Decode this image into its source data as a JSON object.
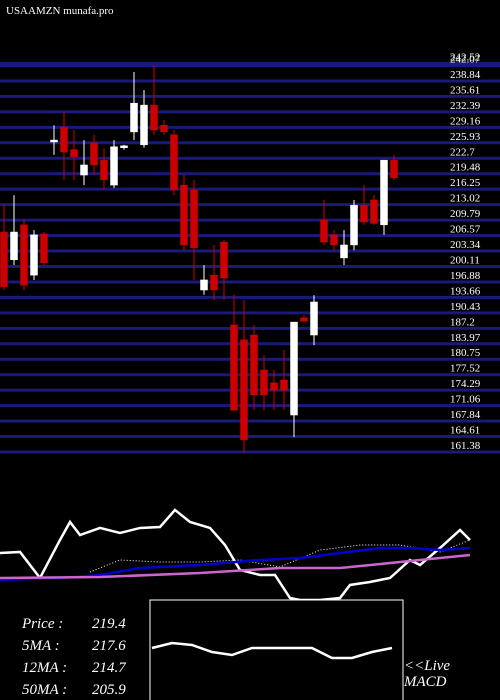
{
  "chart_data": [
    {
      "type": "candlestick",
      "title": "USAAMZN munafa.pro",
      "ylim": [
        159.71,
        247.39
      ],
      "yticks": [
        242.52,
        242.07,
        238.84,
        235.61,
        232.39,
        229.16,
        225.93,
        222.7,
        219.48,
        216.25,
        213.02,
        209.79,
        206.57,
        203.34,
        200.11,
        196.88,
        193.66,
        190.43,
        187.2,
        183.97,
        180.75,
        177.52,
        174.29,
        171.06,
        167.84,
        164.61,
        161.38
      ],
      "grid": true,
      "grid_color": "#1a1a7a",
      "up_color": "#ffffff",
      "down_color": "#cc0000",
      "open": [
        207.3,
        201.5,
        208.8,
        198.3,
        206.9,
        226.1,
        229.2,
        224.5,
        219.2,
        225.9,
        222.3,
        217.1,
        224.9,
        228.2,
        225.5,
        233.8,
        229.6,
        227.6,
        217.1,
        216.1,
        195.2,
        198.3,
        205.2,
        187.9,
        184.8,
        185.8,
        178.5,
        175.8,
        176.4,
        169.1,
        189.4,
        185.8,
        209.8,
        206.7,
        201.9,
        204.6,
        212.9,
        214.0,
        208.8,
        222.3
      ],
      "high": [
        213.0,
        215.0,
        209.8,
        207.7,
        207.3,
        229.6,
        232.4,
        228.6,
        226.5,
        227.6,
        224.8,
        226.5,
        225.5,
        240.7,
        236.96,
        242.2,
        230.7,
        228.6,
        219.2,
        218.2,
        200.4,
        204.6,
        205.6,
        194.2,
        193.1,
        187.9,
        181.6,
        178.5,
        182.7,
        188.5,
        190.0,
        194.1,
        214.0,
        207.7,
        207.7,
        214.0,
        217.1,
        215.0,
        222.3,
        223.4
      ],
      "low": [
        195.2,
        200.4,
        195.2,
        197.3,
        200.4,
        223.4,
        218.2,
        218.2,
        217.1,
        219.2,
        216.1,
        216.5,
        224.5,
        226.5,
        224.9,
        227.6,
        227.6,
        215.0,
        203.5,
        197.3,
        194.2,
        193.1,
        193.1,
        170.1,
        161.2,
        170.1,
        170.1,
        170.1,
        170.1,
        164.5,
        188.5,
        183.7,
        204.6,
        203.5,
        200.4,
        203.5,
        208.8,
        208.8,
        206.7,
        218.2
      ],
      "close": [
        195.9,
        207.3,
        196.2,
        206.7,
        200.9,
        226.5,
        224.0,
        223.0,
        221.3,
        221.3,
        218.2,
        225.1,
        225.3,
        234.2,
        233.8,
        228.6,
        228.2,
        216.1,
        204.6,
        204.0,
        197.3,
        195.2,
        197.7,
        170.1,
        163.9,
        173.3,
        173.3,
        174.3,
        174.3,
        188.5,
        188.7,
        192.7,
        205.2,
        204.6,
        204.6,
        212.9,
        209.4,
        209.1,
        222.3,
        218.6
      ]
    },
    {
      "type": "line",
      "xlim": [
        0,
        50
      ],
      "ylim": [
        0,
        100
      ],
      "series": [
        {
          "color": "#ffffff",
          "style": "solid",
          "x": [
            0,
            2,
            4,
            6,
            7,
            8,
            10,
            12,
            14,
            16,
            17.5,
            19,
            21,
            22.5,
            24,
            26,
            27.5,
            29,
            30,
            32,
            34,
            35,
            37,
            39,
            41,
            42,
            44,
            46,
            47
          ],
          "values": [
            55.8,
            56.7,
            35,
            66.7,
            81.7,
            70.8,
            76.7,
            72.5,
            76.7,
            77.5,
            91.7,
            81.7,
            76.7,
            62.5,
            41.7,
            37.5,
            37.5,
            18.3,
            16.7,
            16.7,
            18.3,
            29.2,
            31.7,
            35,
            50,
            45.8,
            60,
            75,
            66.7
          ]
        },
        {
          "color": "#ffffff",
          "style": "dotted",
          "x": [
            9,
            12,
            16,
            20,
            24,
            28,
            32,
            36,
            40,
            44,
            47
          ],
          "values": [
            40,
            50,
            48.3,
            48.3,
            50,
            44.2,
            58.3,
            62.5,
            62.5,
            56.7,
            66.7
          ]
        },
        {
          "color": "#0000cc",
          "style": "solid",
          "x": [
            0,
            6,
            10,
            14,
            20,
            26,
            30,
            34,
            38,
            41,
            44,
            47
          ],
          "values": [
            33.3,
            35,
            37.5,
            43.3,
            45.8,
            50,
            51.7,
            55.8,
            60,
            60,
            58.3,
            60
          ]
        },
        {
          "color": "#cc66cc",
          "style": "solid",
          "x": [
            0,
            10,
            20,
            28,
            34,
            40,
            47
          ],
          "values": [
            35,
            35.8,
            39.2,
            43.3,
            43.3,
            48.3,
            54.2
          ]
        }
      ]
    },
    {
      "type": "line",
      "label": "<<Live",
      "label2": "MACD",
      "xlim": [
        0,
        12.4
      ],
      "ylim": [
        0,
        100
      ],
      "series": [
        {
          "color": "#ffffff",
          "style": "solid",
          "x": [
            0,
            1,
            2,
            3,
            4,
            5,
            6,
            7,
            8,
            9,
            10,
            11,
            12
          ],
          "values": [
            52,
            57,
            55,
            48,
            45,
            52,
            52,
            52,
            52,
            42,
            42,
            48,
            52
          ]
        }
      ]
    }
  ],
  "stats": [
    {
      "label": "Price   :",
      "value": 219.4
    },
    {
      "label": "5MA :",
      "value": 217.6
    },
    {
      "label": "12MA :",
      "value": 214.7
    },
    {
      "label": "50MA :",
      "value": 205.9
    }
  ]
}
